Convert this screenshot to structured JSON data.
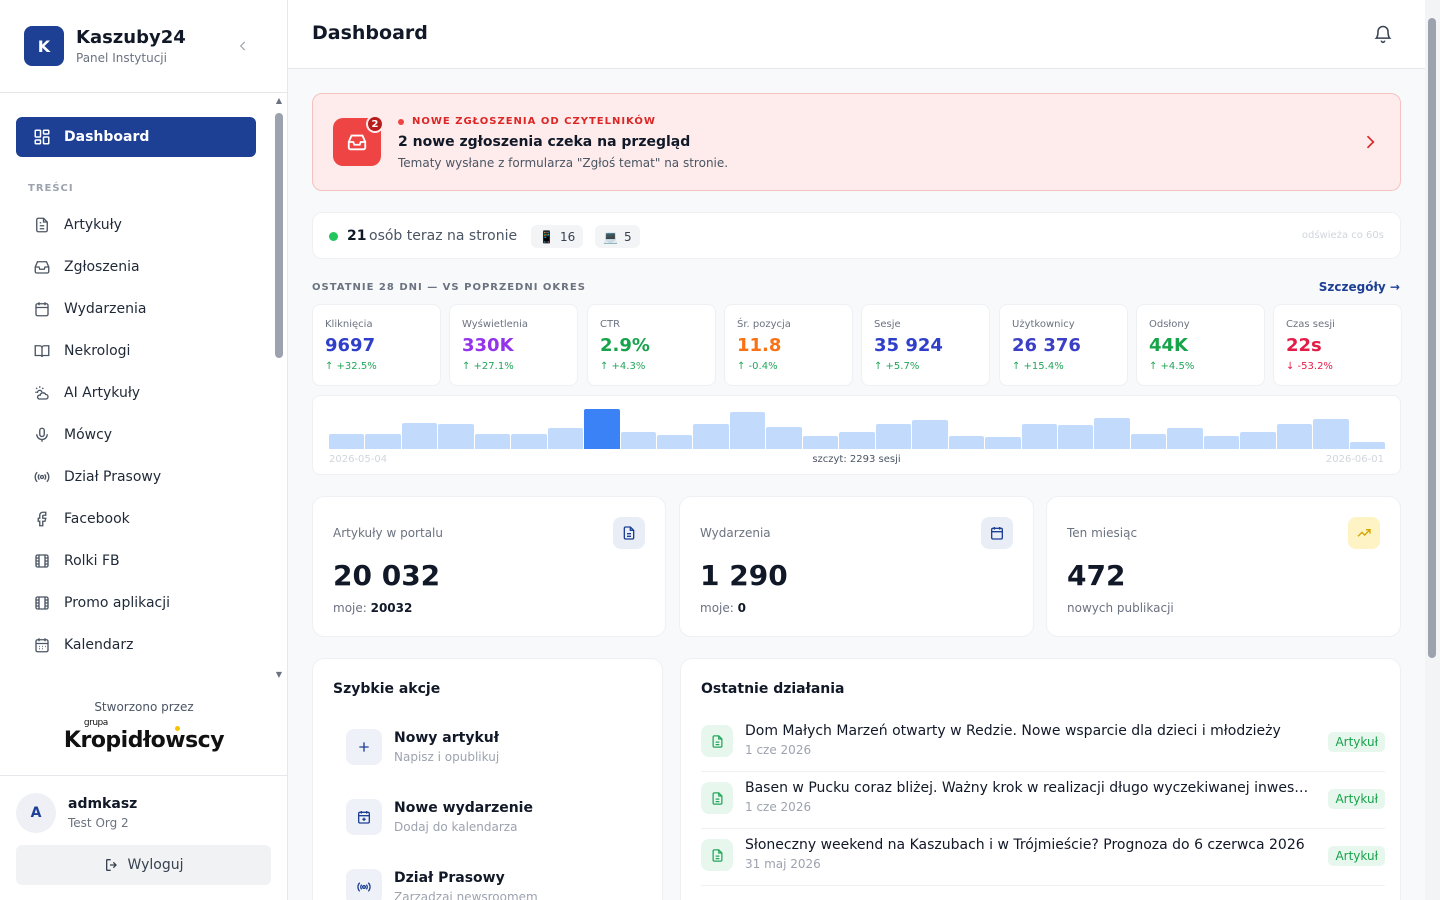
{
  "brand": {
    "initial": "K",
    "name": "Kaszuby24",
    "subtitle": "Panel Instytucji"
  },
  "nav": {
    "active": {
      "label": "Dashboard",
      "icon": "dashboard-grid-icon"
    },
    "section_label": "TREŚCI",
    "items": [
      {
        "label": "Artykuły",
        "icon": "document-icon"
      },
      {
        "label": "Zgłoszenia",
        "icon": "inbox-icon"
      },
      {
        "label": "Wydarzenia",
        "icon": "calendar-icon"
      },
      {
        "label": "Nekrologi",
        "icon": "book-open-icon"
      },
      {
        "label": "AI Artykuły",
        "icon": "sun-cloud-icon"
      },
      {
        "label": "Mówcy",
        "icon": "microphone-icon"
      },
      {
        "label": "Dział Prasowy",
        "icon": "broadcast-icon"
      },
      {
        "label": "Facebook",
        "icon": "facebook-icon"
      },
      {
        "label": "Rolki FB",
        "icon": "film-icon"
      },
      {
        "label": "Promo aplikacji",
        "icon": "film-icon"
      },
      {
        "label": "Kalendarz",
        "icon": "calendar-grid-icon"
      }
    ]
  },
  "credit": {
    "label": "Stworzono przez",
    "grupa": "grupa",
    "logo": "Kropidłowscy"
  },
  "user": {
    "initial": "A",
    "name": "admkasz",
    "org": "Test Org 2",
    "logout_label": "Wyloguj"
  },
  "header": {
    "title": "Dashboard"
  },
  "alert": {
    "badge": "2",
    "kicker": "NOWE ZGŁOSZENIA OD CZYTELNIKÓW",
    "title": "2 nowe zgłoszenia czeka na przegląd",
    "subtitle": "Tematy wysłane z formularza \"Zgłoś temat\" na stronie."
  },
  "live": {
    "count": "21",
    "label": "osób teraz na stronie",
    "mobile": "16",
    "desktop": "5",
    "refresh": "odświeża co 60s"
  },
  "period": {
    "label": "OSTATNIE 28 DNI — VS POPRZEDNI OKRES",
    "details_link": "Szczegóły →"
  },
  "metrics": [
    {
      "label": "Kliknięcia",
      "value": "9697",
      "delta": "↑ +32.5%",
      "value_color": "#2f3fc9",
      "delta_color": "#22a55a"
    },
    {
      "label": "Wyświetlenia",
      "value": "330K",
      "delta": "↑ +27.1%",
      "value_color": "#9333ea",
      "delta_color": "#22a55a"
    },
    {
      "label": "CTR",
      "value": "2.9%",
      "delta": "↑ +4.3%",
      "value_color": "#16a34a",
      "delta_color": "#22a55a"
    },
    {
      "label": "Śr. pozycja",
      "value": "11.8",
      "delta": "↑ -0.4%",
      "value_color": "#f97316",
      "delta_color": "#22a55a"
    },
    {
      "label": "Sesje",
      "value": "35 924",
      "delta": "↑ +5.7%",
      "value_color": "#2f3fc9",
      "delta_color": "#22a55a"
    },
    {
      "label": "Użytkownicy",
      "value": "26 376",
      "delta": "↑ +15.4%",
      "value_color": "#3b3fc6",
      "delta_color": "#22a55a"
    },
    {
      "label": "Odsłony",
      "value": "44K",
      "delta": "↑ +4.5%",
      "value_color": "#16a34a",
      "delta_color": "#22a55a"
    },
    {
      "label": "Czas sesji",
      "value": "22s",
      "delta": "↓ -53.2%",
      "value_color": "#e11d48",
      "delta_color": "#e11d48"
    }
  ],
  "chart_data": {
    "type": "bar",
    "series": [
      {
        "values": [
          870,
          850,
          1490,
          1440,
          870,
          850,
          1230,
          2293,
          960,
          800,
          1440,
          2130,
          1280,
          720,
          960,
          1440,
          1640,
          750,
          700,
          1440,
          1350,
          1790,
          870,
          1230,
          760,
          960,
          1440,
          1730,
          400
        ]
      }
    ],
    "x_start": "2026-05-04",
    "x_end": "2026-06-01",
    "peak_label": "szczyt: 2293 sesji",
    "highlight_index": 7,
    "color": "#c2dbfd",
    "highlight_color": "#3b82f6"
  },
  "stats": [
    {
      "label": "Artykuły w portalu",
      "value": "20 032",
      "sub_label": "moje: ",
      "sub_value": "20032",
      "icon": "document-icon"
    },
    {
      "label": "Wydarzenia",
      "value": "1 290",
      "sub_label": "moje: ",
      "sub_value": "0",
      "icon": "calendar-icon"
    },
    {
      "label": "Ten miesiąc",
      "value": "472",
      "sub_label": "nowych publikacji",
      "sub_value": "",
      "icon": "trending-up-icon"
    }
  ],
  "quick_actions": {
    "title": "Szybkie akcje",
    "items": [
      {
        "title": "Nowy artykuł",
        "subtitle": "Napisz i opublikuj",
        "icon": "plus-icon"
      },
      {
        "title": "Nowe wydarzenie",
        "subtitle": "Dodaj do kalendarza",
        "icon": "calendar-plus-icon"
      },
      {
        "title": "Dział Prasowy",
        "subtitle": "Zarządzaj newsroomem",
        "icon": "broadcast-icon"
      }
    ]
  },
  "recent": {
    "title": "Ostatnie działania",
    "items": [
      {
        "title": "Dom Małych Marzeń otwarty w Redzie. Nowe wsparcie dla dzieci i młodzieży",
        "date": "1 cze 2026",
        "tag": "Artykuł"
      },
      {
        "title": "Basen w Pucku coraz bliżej. Ważny krok w realizacji długo wyczekiwanej inwestycji",
        "date": "1 cze 2026",
        "tag": "Artykuł"
      },
      {
        "title": "Słoneczny weekend na Kaszubach i w Trójmieście? Prognoza do 6 czerwca 2026",
        "date": "31 maj 2026",
        "tag": "Artykuł"
      }
    ]
  }
}
